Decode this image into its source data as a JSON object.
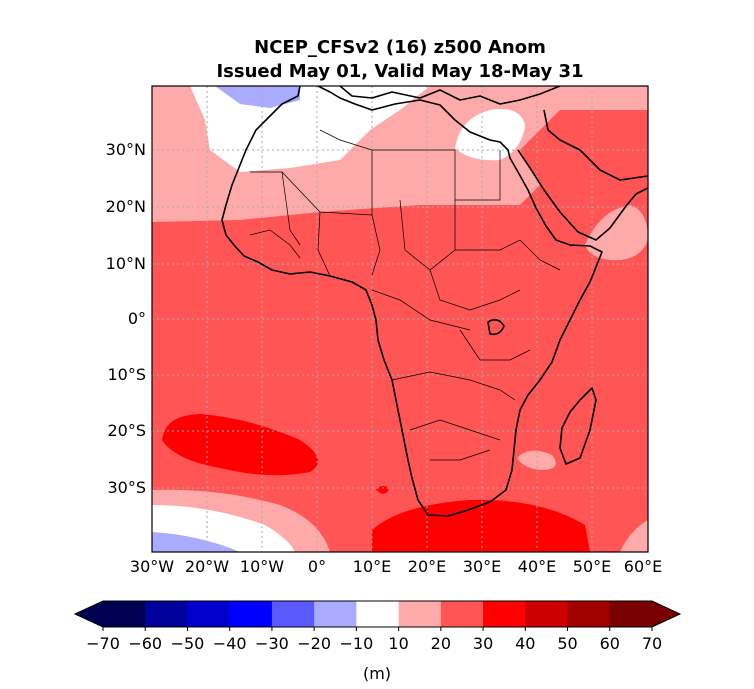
{
  "title_line1": "NCEP_CFSv2 (16) z500 Anom",
  "title_line2": "Issued May 01, Valid May 18-May 31",
  "map": {
    "region": "Africa",
    "lon_range": [
      -30,
      60
    ],
    "lat_range": [
      -40,
      40
    ],
    "gridlines": true,
    "lon_ticks": [
      "30°W",
      "20°W",
      "10°W",
      "0°",
      "10°E",
      "20°E",
      "30°E",
      "40°E",
      "50°E",
      "60°E"
    ],
    "lat_ticks": [
      "30°N",
      "20°N",
      "10°N",
      "0°",
      "10°S",
      "20°S",
      "30°S"
    ]
  },
  "colorbar": {
    "unit_label": "(m)",
    "levels": [
      -70,
      -60,
      -50,
      -40,
      -30,
      -20,
      -10,
      10,
      20,
      30,
      40,
      50,
      60,
      70
    ],
    "tick_labels": [
      "−70",
      "−60",
      "−50",
      "−40",
      "−30",
      "−20",
      "−10",
      "10",
      "20",
      "30",
      "40",
      "50",
      "60",
      "70"
    ],
    "colors": [
      "#000050",
      "#00009a",
      "#0000cc",
      "#0000ff",
      "#5a5aff",
      "#aaaaff",
      "#ffffff",
      "#ffaaaa",
      "#ff5555",
      "#ff0000",
      "#cc0000",
      "#a00000",
      "#780000"
    ],
    "extend": "both"
  }
}
